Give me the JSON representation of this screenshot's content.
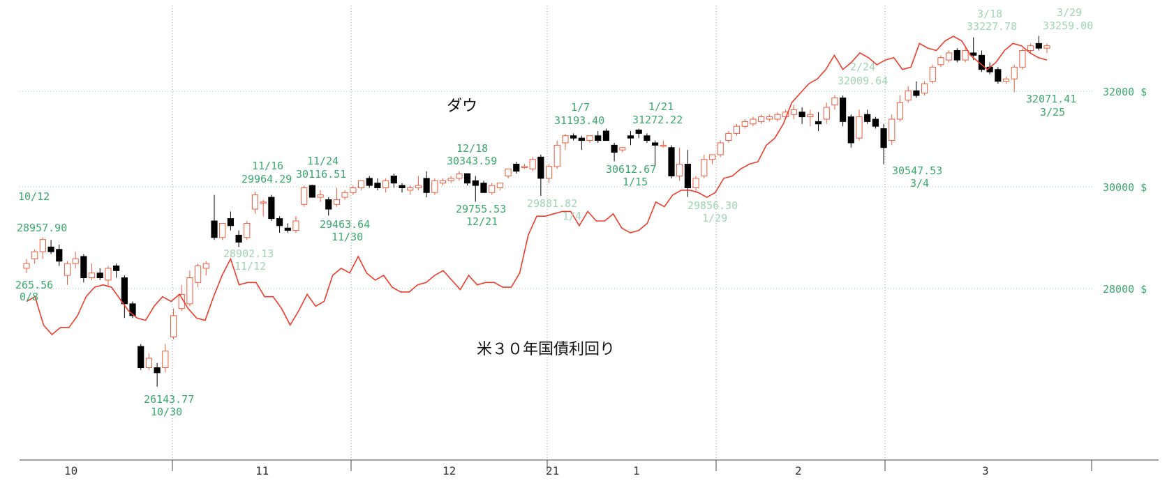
{
  "chart_data": {
    "type": "candlestick",
    "title_dow": "ダウ",
    "title_yield": "米３０年国債利回り",
    "y_unit": "$",
    "y_ticks": [
      28000,
      30000,
      32000
    ],
    "y_tick_labels": [
      "28000 $",
      "30000 $",
      "32000 $"
    ],
    "ylim": [
      24300,
      33900
    ],
    "x_labels": [
      "10",
      "11",
      "12",
      "21",
      "1",
      "2",
      "3"
    ],
    "grid": "dotted",
    "colors": {
      "up": "#ef5a3c",
      "down": "#000000",
      "line": "#ef3b2a",
      "grid": "#9ad3b0",
      "annotation": "#39a86e"
    },
    "candles": [
      {
        "o": 28350,
        "h": 28550,
        "l": 28250,
        "c": 28450
      },
      {
        "o": 28550,
        "h": 28750,
        "l": 28450,
        "c": 28700
      },
      {
        "o": 28700,
        "h": 29000,
        "l": 28550,
        "c": 28957
      },
      {
        "o": 28800,
        "h": 28950,
        "l": 28650,
        "c": 28700
      },
      {
        "o": 28750,
        "h": 28850,
        "l": 28400,
        "c": 28500
      },
      {
        "o": 28200,
        "h": 28500,
        "l": 28000,
        "c": 28450
      },
      {
        "o": 28450,
        "h": 28700,
        "l": 28350,
        "c": 28550
      },
      {
        "o": 28600,
        "h": 28650,
        "l": 28050,
        "c": 28150
      },
      {
        "o": 28150,
        "h": 28450,
        "l": 28100,
        "c": 28250
      },
      {
        "o": 28250,
        "h": 28350,
        "l": 28100,
        "c": 28150
      },
      {
        "o": 28100,
        "h": 28400,
        "l": 27950,
        "c": 28350
      },
      {
        "o": 28400,
        "h": 28450,
        "l": 28150,
        "c": 28300
      },
      {
        "o": 28150,
        "h": 28200,
        "l": 27300,
        "c": 27600
      },
      {
        "o": 27600,
        "h": 27650,
        "l": 27300,
        "c": 27350
      },
      {
        "o": 26700,
        "h": 26750,
        "l": 26200,
        "c": 26250
      },
      {
        "o": 26250,
        "h": 26550,
        "l": 26200,
        "c": 26450
      },
      {
        "o": 26250,
        "h": 26350,
        "l": 25850,
        "c": 26143
      },
      {
        "o": 26250,
        "h": 26750,
        "l": 26150,
        "c": 26600
      },
      {
        "o": 26900,
        "h": 27500,
        "l": 26850,
        "c": 27350
      },
      {
        "o": 27500,
        "h": 28000,
        "l": 27450,
        "c": 27800
      },
      {
        "o": 27600,
        "h": 28300,
        "l": 27550,
        "c": 28150
      },
      {
        "o": 28050,
        "h": 28450,
        "l": 27950,
        "c": 28400
      },
      {
        "o": 28350,
        "h": 28500,
        "l": 28200,
        "c": 28450
      },
      {
        "o": 29350,
        "h": 29900,
        "l": 28950,
        "c": 29000
      },
      {
        "o": 29000,
        "h": 29300,
        "l": 28950,
        "c": 29300
      },
      {
        "o": 29400,
        "h": 29550,
        "l": 29150,
        "c": 29250
      },
      {
        "o": 29050,
        "h": 29150,
        "l": 28800,
        "c": 28902
      },
      {
        "o": 29000,
        "h": 29350,
        "l": 28950,
        "c": 29300
      },
      {
        "o": 29600,
        "h": 29964,
        "l": 29500,
        "c": 29900
      },
      {
        "o": 29750,
        "h": 29800,
        "l": 29450,
        "c": 29750
      },
      {
        "o": 29850,
        "h": 29900,
        "l": 29350,
        "c": 29400
      },
      {
        "o": 29400,
        "h": 29450,
        "l": 29100,
        "c": 29250
      },
      {
        "o": 29200,
        "h": 29300,
        "l": 29100,
        "c": 29150
      },
      {
        "o": 29150,
        "h": 29450,
        "l": 29100,
        "c": 29350
      },
      {
        "o": 29700,
        "h": 30100,
        "l": 29650,
        "c": 30050
      },
      {
        "o": 30100,
        "h": 30116,
        "l": 29850,
        "c": 29850
      },
      {
        "o": 29850,
        "h": 30000,
        "l": 29750,
        "c": 29900
      },
      {
        "o": 29800,
        "h": 29850,
        "l": 29463,
        "c": 29600
      },
      {
        "o": 29700,
        "h": 30050,
        "l": 29650,
        "c": 29800
      },
      {
        "o": 29850,
        "h": 30000,
        "l": 29800,
        "c": 29950
      },
      {
        "o": 29950,
        "h": 30100,
        "l": 29900,
        "c": 30050
      },
      {
        "o": 30050,
        "h": 30200,
        "l": 30000,
        "c": 30200
      },
      {
        "o": 30250,
        "h": 30300,
        "l": 30050,
        "c": 30100
      },
      {
        "o": 30150,
        "h": 30250,
        "l": 30000,
        "c": 30050
      },
      {
        "o": 30050,
        "h": 30250,
        "l": 29950,
        "c": 30200
      },
      {
        "o": 30300,
        "h": 30350,
        "l": 30050,
        "c": 30150
      },
      {
        "o": 30100,
        "h": 30150,
        "l": 29950,
        "c": 30050
      },
      {
        "o": 30000,
        "h": 30100,
        "l": 29900,
        "c": 30050
      },
      {
        "o": 30050,
        "h": 30300,
        "l": 30000,
        "c": 30100
      },
      {
        "o": 30250,
        "h": 30400,
        "l": 29850,
        "c": 29950
      },
      {
        "o": 29950,
        "h": 30250,
        "l": 29900,
        "c": 30200
      },
      {
        "o": 30150,
        "h": 30250,
        "l": 30100,
        "c": 30200
      },
      {
        "o": 30200,
        "h": 30300,
        "l": 30150,
        "c": 30250
      },
      {
        "o": 30250,
        "h": 30400,
        "l": 30200,
        "c": 30343
      },
      {
        "o": 30350,
        "h": 30350,
        "l": 30100,
        "c": 30150
      },
      {
        "o": 30200,
        "h": 30300,
        "l": 29755,
        "c": 30100
      },
      {
        "o": 30150,
        "h": 30200,
        "l": 29950,
        "c": 29950
      },
      {
        "o": 29950,
        "h": 30150,
        "l": 29900,
        "c": 30100
      },
      {
        "o": 30050,
        "h": 30150,
        "l": 30000,
        "c": 30150
      },
      {
        "o": 30300,
        "h": 30450,
        "l": 30250,
        "c": 30450
      },
      {
        "o": 30550,
        "h": 30600,
        "l": 30350,
        "c": 30400
      },
      {
        "o": 30500,
        "h": 30550,
        "l": 30450,
        "c": 30500
      },
      {
        "o": 30450,
        "h": 30700,
        "l": 30400,
        "c": 30650
      },
      {
        "o": 30700,
        "h": 30750,
        "l": 29881,
        "c": 30250
      },
      {
        "o": 30250,
        "h": 30550,
        "l": 30150,
        "c": 30500
      },
      {
        "o": 30500,
        "h": 31050,
        "l": 30450,
        "c": 30950
      },
      {
        "o": 31000,
        "h": 31193,
        "l": 30850,
        "c": 31150
      },
      {
        "o": 31150,
        "h": 31200,
        "l": 31050,
        "c": 31100
      },
      {
        "o": 31100,
        "h": 31150,
        "l": 30850,
        "c": 31050
      },
      {
        "o": 31050,
        "h": 31150,
        "l": 31000,
        "c": 31150
      },
      {
        "o": 31150,
        "h": 31250,
        "l": 31000,
        "c": 31050
      },
      {
        "o": 31250,
        "h": 31300,
        "l": 31050,
        "c": 31050
      },
      {
        "o": 30950,
        "h": 31000,
        "l": 30612,
        "c": 30800
      },
      {
        "o": 30850,
        "h": 30900,
        "l": 30800,
        "c": 30900
      },
      {
        "o": 31150,
        "h": 31250,
        "l": 30950,
        "c": 31100
      },
      {
        "o": 31272,
        "h": 31300,
        "l": 31100,
        "c": 31200
      },
      {
        "o": 31150,
        "h": 31200,
        "l": 31000,
        "c": 31050
      },
      {
        "o": 31000,
        "h": 31050,
        "l": 30500,
        "c": 30950
      },
      {
        "o": 30950,
        "h": 31050,
        "l": 30900,
        "c": 30950
      },
      {
        "o": 30900,
        "h": 30950,
        "l": 30250,
        "c": 30300
      },
      {
        "o": 30300,
        "h": 30900,
        "l": 30200,
        "c": 30550
      },
      {
        "o": 30550,
        "h": 30850,
        "l": 29856,
        "c": 30050
      },
      {
        "o": 30050,
        "h": 30300,
        "l": 29950,
        "c": 30250
      },
      {
        "o": 30300,
        "h": 30750,
        "l": 30250,
        "c": 30650
      },
      {
        "o": 30650,
        "h": 30750,
        "l": 30550,
        "c": 30750
      },
      {
        "o": 30750,
        "h": 31050,
        "l": 30700,
        "c": 31000
      },
      {
        "o": 31050,
        "h": 31250,
        "l": 31000,
        "c": 31200
      },
      {
        "o": 31200,
        "h": 31400,
        "l": 31150,
        "c": 31350
      },
      {
        "o": 31350,
        "h": 31500,
        "l": 31300,
        "c": 31450
      },
      {
        "o": 31400,
        "h": 31550,
        "l": 31350,
        "c": 31500
      },
      {
        "o": 31450,
        "h": 31600,
        "l": 31400,
        "c": 31550
      },
      {
        "o": 31500,
        "h": 31600,
        "l": 31450,
        "c": 31550
      },
      {
        "o": 31500,
        "h": 31650,
        "l": 31450,
        "c": 31600
      },
      {
        "o": 31550,
        "h": 31700,
        "l": 31500,
        "c": 31650
      },
      {
        "o": 31600,
        "h": 31800,
        "l": 31500,
        "c": 31700
      },
      {
        "o": 31650,
        "h": 31750,
        "l": 31400,
        "c": 31550
      },
      {
        "o": 31550,
        "h": 31700,
        "l": 31350,
        "c": 31600
      },
      {
        "o": 31450,
        "h": 31650,
        "l": 31250,
        "c": 31400
      },
      {
        "o": 31500,
        "h": 31850,
        "l": 31400,
        "c": 31750
      },
      {
        "o": 31800,
        "h": 32009,
        "l": 31700,
        "c": 31950
      },
      {
        "o": 31950,
        "h": 32000,
        "l": 31350,
        "c": 31450
      },
      {
        "o": 31550,
        "h": 31600,
        "l": 30900,
        "c": 31000
      },
      {
        "o": 31100,
        "h": 31700,
        "l": 31050,
        "c": 31550
      },
      {
        "o": 31600,
        "h": 31700,
        "l": 31400,
        "c": 31450
      },
      {
        "o": 31500,
        "h": 31550,
        "l": 31300,
        "c": 31350
      },
      {
        "o": 31300,
        "h": 31400,
        "l": 30547,
        "c": 30900
      },
      {
        "o": 31050,
        "h": 31600,
        "l": 30950,
        "c": 31500
      },
      {
        "o": 31500,
        "h": 32000,
        "l": 31450,
        "c": 31850
      },
      {
        "o": 31900,
        "h": 32200,
        "l": 31850,
        "c": 32100
      },
      {
        "o": 32100,
        "h": 32300,
        "l": 31950,
        "c": 32000
      },
      {
        "o": 32050,
        "h": 32300,
        "l": 32000,
        "c": 32250
      },
      {
        "o": 32300,
        "h": 32650,
        "l": 32250,
        "c": 32600
      },
      {
        "o": 32650,
        "h": 32850,
        "l": 32600,
        "c": 32800
      },
      {
        "o": 32750,
        "h": 32950,
        "l": 32700,
        "c": 32900
      },
      {
        "o": 32950,
        "h": 33000,
        "l": 32700,
        "c": 32750
      },
      {
        "o": 32750,
        "h": 33000,
        "l": 32700,
        "c": 32950
      },
      {
        "o": 32900,
        "h": 33227,
        "l": 32750,
        "c": 32850
      },
      {
        "o": 32850,
        "h": 32950,
        "l": 32500,
        "c": 32550
      },
      {
        "o": 32600,
        "h": 32700,
        "l": 32450,
        "c": 32500
      },
      {
        "o": 32550,
        "h": 32600,
        "l": 32250,
        "c": 32300
      },
      {
        "o": 32300,
        "h": 32400,
        "l": 32250,
        "c": 32350
      },
      {
        "o": 32350,
        "h": 32650,
        "l": 32071,
        "c": 32600
      },
      {
        "o": 32600,
        "h": 33000,
        "l": 32550,
        "c": 32950
      },
      {
        "o": 32950,
        "h": 33100,
        "l": 32900,
        "c": 33050
      },
      {
        "o": 33100,
        "h": 33259,
        "l": 32950,
        "c": 33000
      },
      {
        "o": 33000,
        "h": 33100,
        "l": 32900,
        "c": 33050
      }
    ],
    "yield_line": [
      27650,
      27750,
      27150,
      26950,
      27100,
      27100,
      27350,
      27750,
      27950,
      28000,
      27950,
      27700,
      27450,
      27300,
      27250,
      27550,
      27750,
      27650,
      27800,
      27500,
      27300,
      27250,
      27750,
      28200,
      28550,
      28000,
      28050,
      28050,
      27750,
      27750,
      27500,
      27150,
      27450,
      27800,
      27550,
      27650,
      28200,
      28350,
      28250,
      28600,
      28250,
      28100,
      28200,
      27950,
      27850,
      27850,
      28000,
      28050,
      28200,
      28300,
      28100,
      27900,
      28200,
      28000,
      28050,
      28050,
      27950,
      27950,
      28250,
      29050,
      29450,
      29450,
      29500,
      29550,
      29550,
      29250,
      29550,
      29350,
      29350,
      29500,
      29200,
      29100,
      29150,
      29300,
      29750,
      29650,
      29900,
      30000,
      30000,
      29950,
      29850,
      29950,
      30250,
      30300,
      30450,
      30550,
      30600,
      30950,
      31100,
      31400,
      31850,
      32050,
      32250,
      32350,
      32550,
      32850,
      32550,
      32700,
      32900,
      32800,
      32650,
      32750,
      32800,
      32550,
      32600,
      33100,
      33000,
      32950,
      33150,
      33250,
      33150,
      32850,
      32700,
      32550,
      32700,
      32950,
      33100,
      33050,
      32900,
      32800,
      32750
    ]
  },
  "annotations": [
    {
      "text": "10/12",
      "style": "normal"
    },
    {
      "text": "28957.90",
      "style": "normal"
    },
    {
      "text": "265.56",
      "style": "normal"
    },
    {
      "text": "0/8",
      "style": "normal"
    },
    {
      "text": "26143.77",
      "style": "normal"
    },
    {
      "text": "10/30",
      "style": "normal"
    },
    {
      "text": "11/16",
      "style": "normal"
    },
    {
      "text": "29964.29",
      "style": "normal"
    },
    {
      "text": "11/24",
      "style": "normal"
    },
    {
      "text": "30116.51",
      "style": "normal"
    },
    {
      "text": "29463.64",
      "style": "normal"
    },
    {
      "text": "11/30",
      "style": "normal"
    },
    {
      "text": "28902.13",
      "style": "light"
    },
    {
      "text": "11/12",
      "style": "light"
    },
    {
      "text": "12/18",
      "style": "normal"
    },
    {
      "text": "30343.59",
      "style": "normal"
    },
    {
      "text": "29755.53",
      "style": "normal"
    },
    {
      "text": "12/21",
      "style": "normal"
    },
    {
      "text": "29881.82",
      "style": "light"
    },
    {
      "text": "1/4",
      "style": "light"
    },
    {
      "text": "1/7",
      "style": "normal"
    },
    {
      "text": "31193.40",
      "style": "normal"
    },
    {
      "text": "1/21",
      "style": "normal"
    },
    {
      "text": "31272.22",
      "style": "normal"
    },
    {
      "text": "30612.67",
      "style": "normal"
    },
    {
      "text": "1/15",
      "style": "normal"
    },
    {
      "text": "29856.30",
      "style": "light"
    },
    {
      "text": "1/29",
      "style": "light"
    },
    {
      "text": "2/24",
      "style": "light"
    },
    {
      "text": "32009.64",
      "style": "light"
    },
    {
      "text": "30547.53",
      "style": "normal"
    },
    {
      "text": "3/4",
      "style": "normal"
    },
    {
      "text": "3/18",
      "style": "light"
    },
    {
      "text": "33227.78",
      "style": "light"
    },
    {
      "text": "3/29",
      "style": "light"
    },
    {
      "text": "33259.00",
      "style": "light"
    },
    {
      "text": "32071.41",
      "style": "normal"
    },
    {
      "text": "3/25",
      "style": "normal"
    }
  ]
}
